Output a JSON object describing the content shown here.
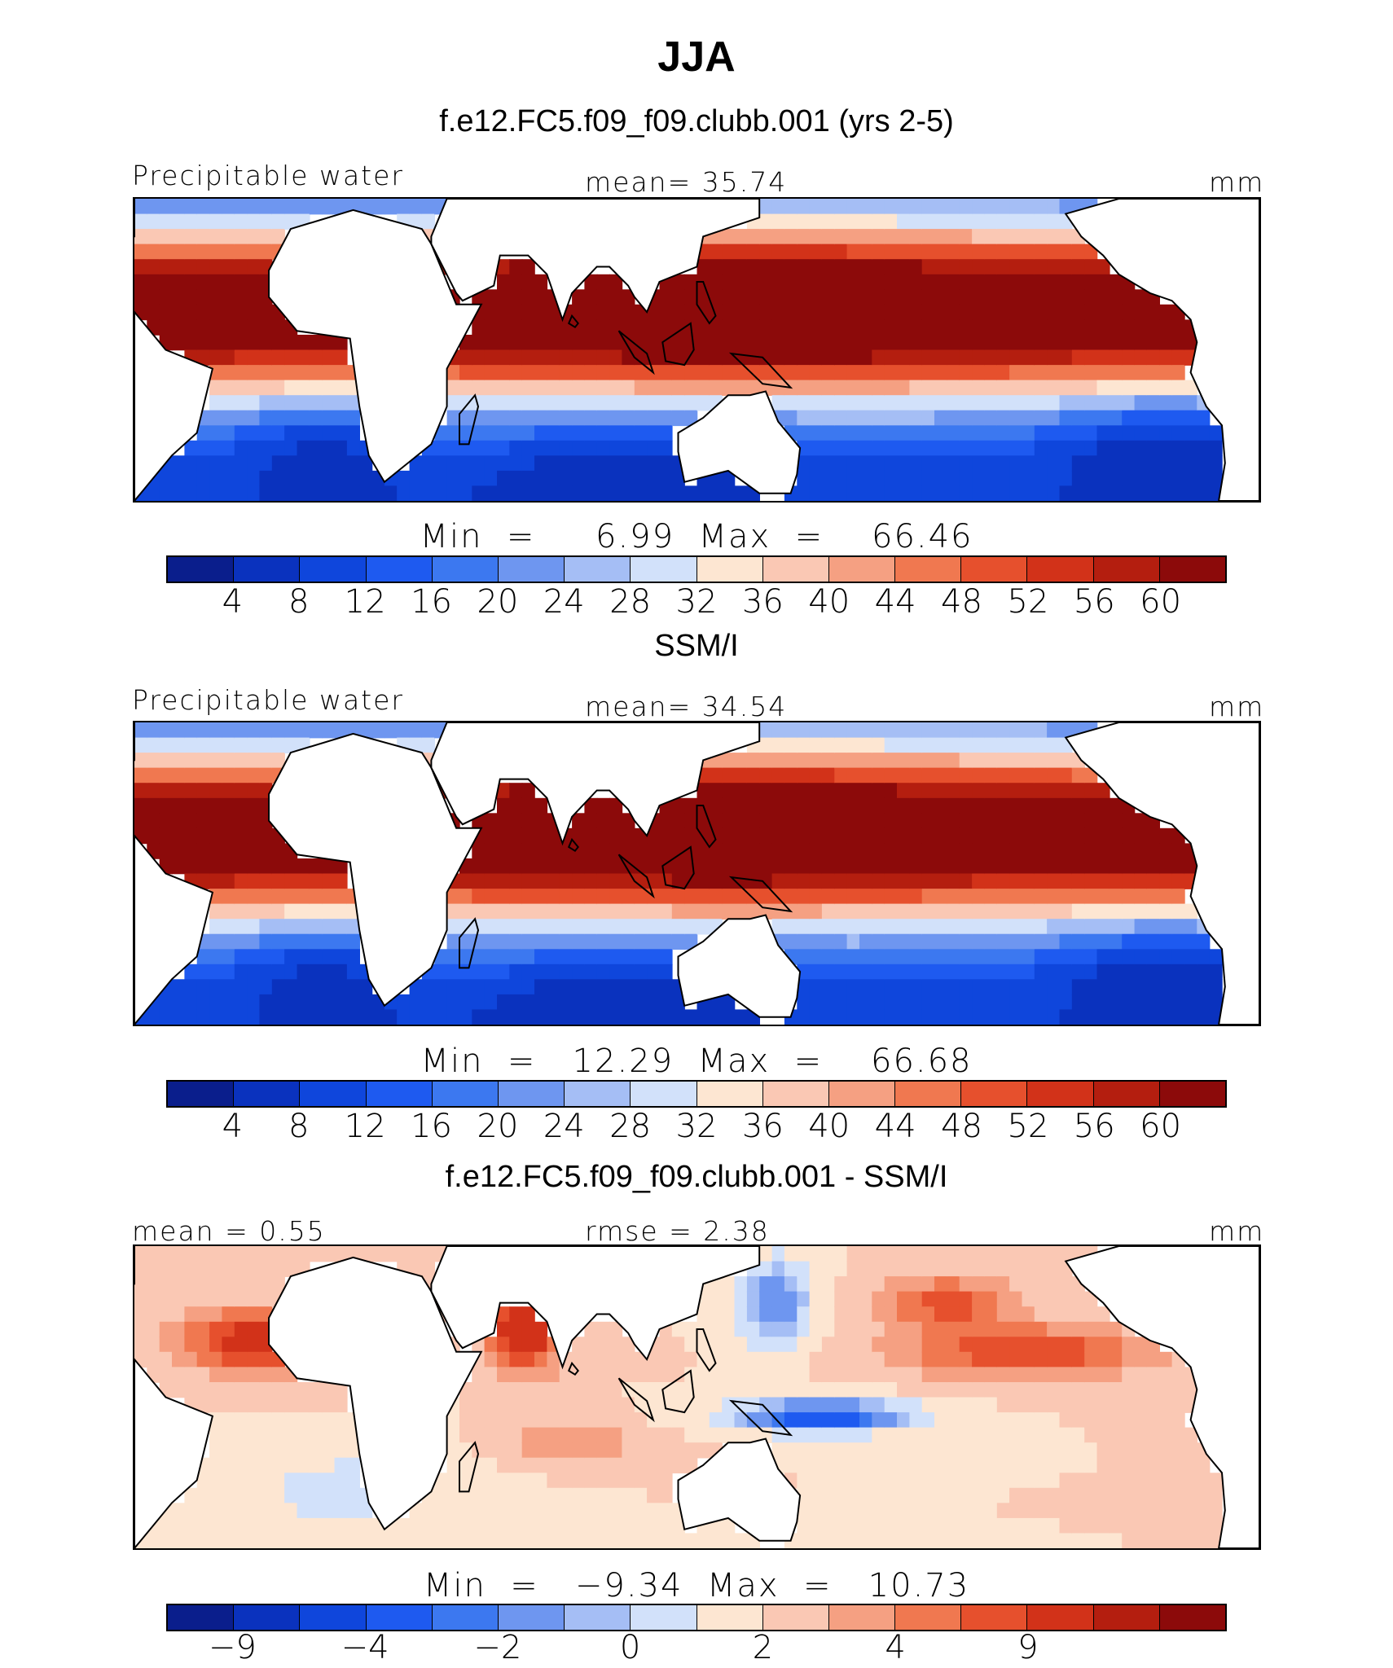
{
  "title": "JJA",
  "colors": {
    "precip": [
      "#0a1e8c",
      "#0a32be",
      "#0f46dc",
      "#1e5af0",
      "#3c78f0",
      "#6e96f0",
      "#a5bef5",
      "#d2e1fa",
      "#fde6d2",
      "#fac8b4",
      "#f5a082",
      "#f07850",
      "#e6502d",
      "#d23219",
      "#b41e0f",
      "#8c0a0a"
    ],
    "diff": [
      "#0a1e8c",
      "#0a32be",
      "#0f46dc",
      "#1e5af0",
      "#3c78f0",
      "#6e96f0",
      "#a5bef5",
      "#d2e1fa",
      "#fde6d2",
      "#fac8b4",
      "#f5a082",
      "#f07850",
      "#e6502d",
      "#d23219",
      "#b41e0f",
      "#8c0a0a"
    ]
  },
  "chart_data": [
    {
      "type": "heatmap",
      "season": "JJA",
      "title": "f.e12.FC5.f09_f09.clubb.001 (yrs 2-5)",
      "left_label": "Precipitable water",
      "center_label": "mean=   35.74",
      "units": "mm",
      "min_text": "Min  =     6.99  Max  =    66.46",
      "min": 6.99,
      "max": 66.46,
      "mean": 35.74,
      "levels": [
        4,
        8,
        12,
        16,
        20,
        24,
        28,
        32,
        36,
        40,
        44,
        48,
        52,
        56,
        60
      ],
      "tick_labels": [
        "4",
        "8",
        "12",
        "16",
        "20",
        "24",
        "28",
        "32",
        "36",
        "40",
        "44",
        "48",
        "52",
        "56",
        "60"
      ]
    },
    {
      "type": "heatmap",
      "season": "JJA",
      "title": "SSM/I",
      "left_label": "Precipitable water",
      "center_label": "mean=   34.54",
      "units": "mm",
      "min_text": "Min  =   12.29  Max  =    66.68",
      "min": 12.29,
      "max": 66.68,
      "mean": 34.54,
      "levels": [
        4,
        8,
        12,
        16,
        20,
        24,
        28,
        32,
        36,
        40,
        44,
        48,
        52,
        56,
        60
      ],
      "tick_labels": [
        "4",
        "8",
        "12",
        "16",
        "20",
        "24",
        "28",
        "32",
        "36",
        "40",
        "44",
        "48",
        "52",
        "56",
        "60"
      ]
    },
    {
      "type": "heatmap",
      "season": "JJA",
      "title": "f.e12.FC5.f09_f09.clubb.001 - SSM/I",
      "left_label": "mean =    0.55",
      "center_label": "rmse =    2.38",
      "units": "mm",
      "min_text": "Min  =   −9.34  Max  =   10.73",
      "min": -9.34,
      "max": 10.73,
      "mean": 0.55,
      "rmse": 2.38,
      "levels": [
        -9,
        -6,
        -4,
        -3,
        -2,
        -1,
        0,
        1,
        2,
        3,
        4,
        6,
        9
      ],
      "tick_labels": [
        "−9",
        "−4",
        "−2",
        "0",
        "2",
        "4",
        "9"
      ]
    }
  ]
}
